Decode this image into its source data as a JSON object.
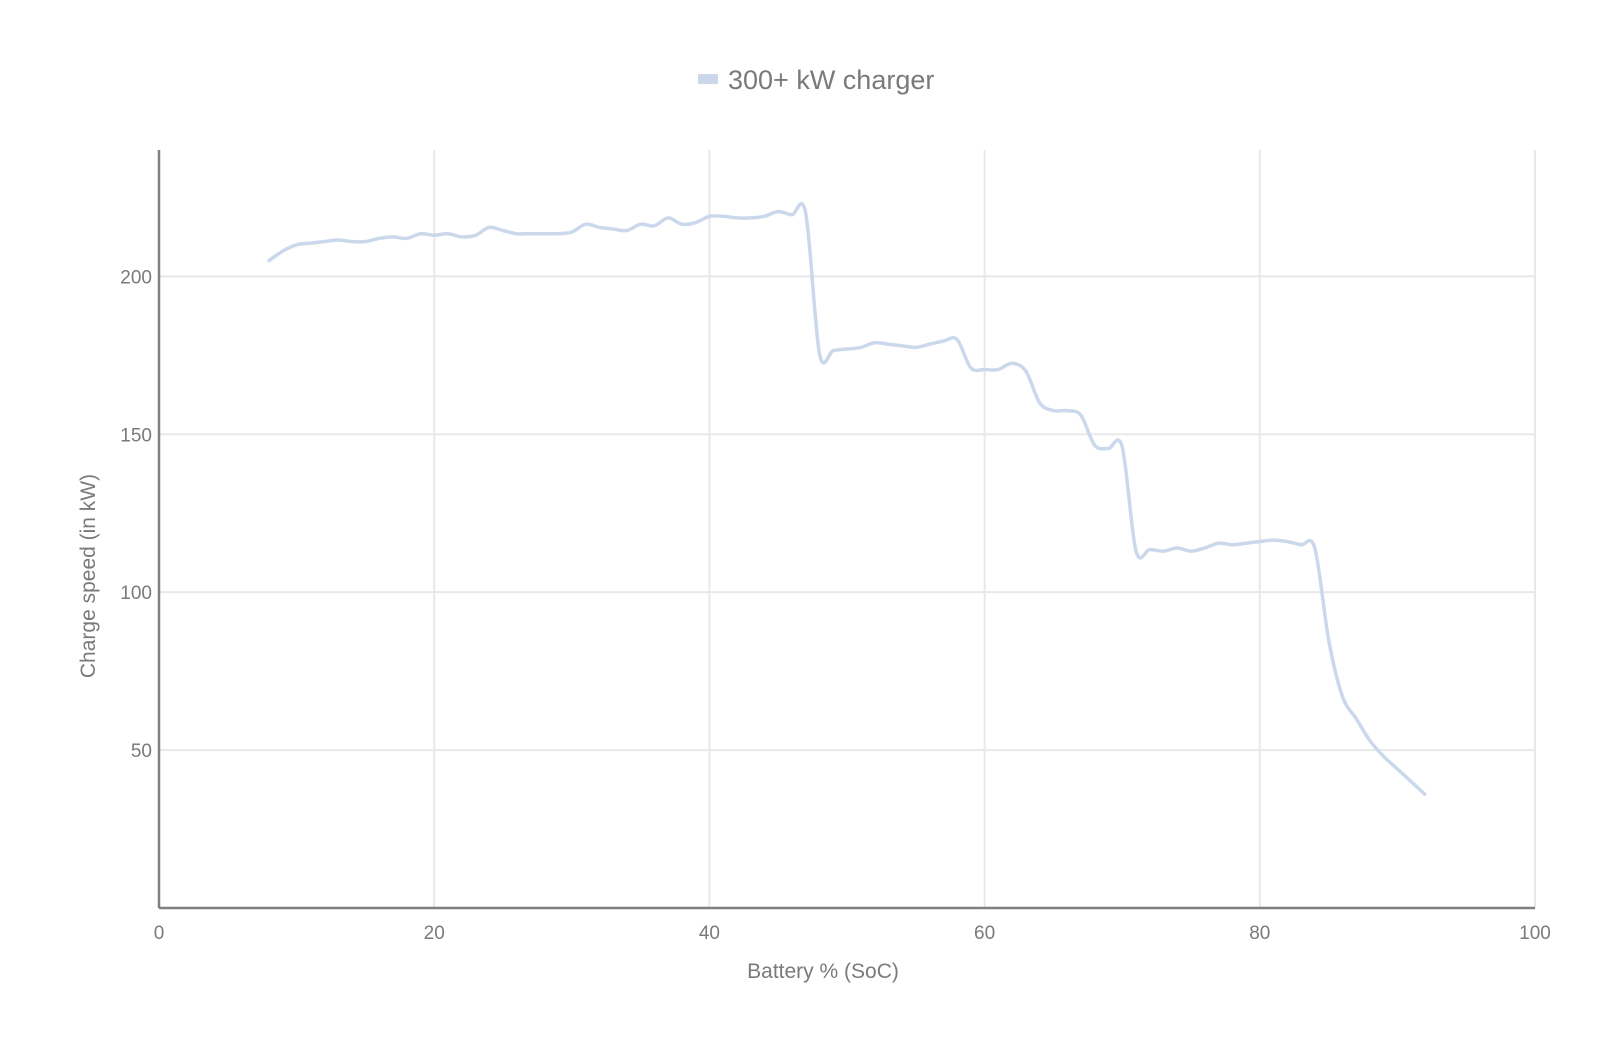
{
  "chart_data": {
    "type": "line",
    "title": "",
    "xlabel": "Battery % (SoC)",
    "ylabel": "Charge speed (in kW)",
    "xlim": [
      0,
      100
    ],
    "ylim": [
      0,
      240
    ],
    "xticks": [
      0,
      20,
      40,
      60,
      80,
      100
    ],
    "yticks": [
      50,
      100,
      150,
      200
    ],
    "grid": true,
    "legend_position": "top-center",
    "series": [
      {
        "name": "300+ kW charger",
        "color": "#cbd8ec",
        "x": [
          8,
          9,
          10,
          11,
          12,
          13,
          14,
          15,
          16,
          17,
          18,
          19,
          20,
          21,
          22,
          23,
          24,
          25,
          26,
          27,
          28,
          29,
          30,
          31,
          32,
          33,
          34,
          35,
          36,
          37,
          38,
          39,
          40,
          41,
          42,
          43,
          44,
          45,
          46,
          47,
          48,
          49,
          50,
          51,
          52,
          53,
          54,
          55,
          56,
          57,
          58,
          59,
          60,
          61,
          62,
          63,
          64,
          65,
          66,
          67,
          68,
          69,
          70,
          71,
          72,
          73,
          74,
          75,
          76,
          77,
          78,
          79,
          80,
          81,
          82,
          83,
          84,
          85,
          86,
          87,
          88,
          89,
          90,
          91,
          92
        ],
        "values": [
          205,
          208,
          210,
          210.5,
          211,
          211.5,
          211,
          211,
          212,
          212.5,
          212,
          213.5,
          213,
          213.5,
          212.5,
          213,
          215.5,
          214.5,
          213.5,
          213.5,
          213.5,
          213.5,
          214,
          216.5,
          215.5,
          215,
          214.5,
          216.5,
          216,
          218.5,
          216.5,
          217,
          219,
          219,
          218.5,
          218.5,
          219,
          220.5,
          219.5,
          220,
          175.5,
          176.5,
          177,
          177.5,
          179,
          178.5,
          178,
          177.5,
          178.5,
          179.5,
          180,
          171,
          170.5,
          170.5,
          172.5,
          170,
          160,
          157.5,
          157.5,
          156,
          146.5,
          145.5,
          146,
          113,
          113.5,
          113,
          114,
          113,
          114,
          115.5,
          115,
          115.5,
          116,
          116.5,
          116,
          115,
          114,
          85,
          67,
          60,
          53,
          48,
          44,
          40,
          36
        ]
      }
    ]
  }
}
